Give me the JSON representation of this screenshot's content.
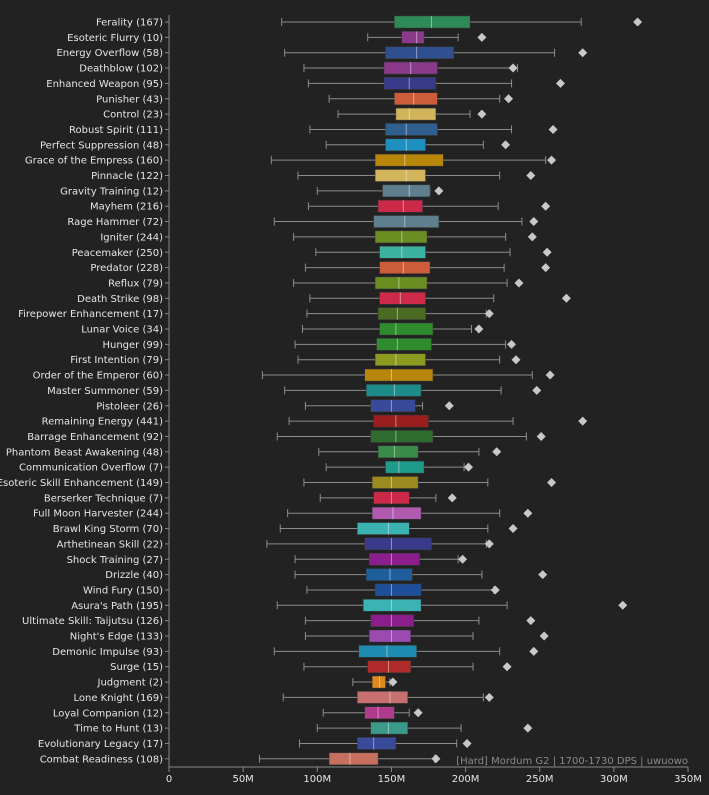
{
  "caption": "[Hard] Mordum G2 | 1700-1730 DPS | uwuowo",
  "colors": {
    "background": "#222222",
    "text": "#e6e6e6",
    "whisker": "#8c8c8c",
    "outlier": "#c8c8c8",
    "axis": "#888888"
  },
  "chart_data": {
    "type": "box",
    "orientation": "horizontal",
    "unit": "M",
    "xlim": [
      0,
      350
    ],
    "xticks": [
      "0",
      "50M",
      "100M",
      "150M",
      "200M",
      "250M",
      "300M",
      "350M"
    ],
    "grid": false,
    "categories": [
      {
        "label": "Ferality (167)",
        "min": 76,
        "q1": 152,
        "median": 177,
        "q3": 203,
        "max": 278,
        "outlier": 316,
        "color": "#2e8b57"
      },
      {
        "label": "Esoteric Flurry (10)",
        "min": 134,
        "q1": 157,
        "median": 167,
        "q3": 172,
        "max": 195,
        "outlier": 211,
        "color": "#8b3a8b"
      },
      {
        "label": "Energy Overflow (58)",
        "min": 78,
        "q1": 146,
        "median": 167,
        "q3": 192,
        "max": 260,
        "outlier": 279,
        "color": "#2f4f8f"
      },
      {
        "label": "Deathblow (102)",
        "min": 91,
        "q1": 145,
        "median": 163,
        "q3": 181,
        "max": 235,
        "outlier": 232,
        "color": "#8b3a8b"
      },
      {
        "label": "Enhanced Weapon (95)",
        "min": 94,
        "q1": 145,
        "median": 162,
        "q3": 180,
        "max": 231,
        "outlier": 264,
        "color": "#3a3a8b"
      },
      {
        "label": "Punisher (43)",
        "min": 108,
        "q1": 152,
        "median": 165,
        "q3": 181,
        "max": 223,
        "outlier": 229,
        "color": "#cd5c3a"
      },
      {
        "label": "Control (23)",
        "min": 114,
        "q1": 153,
        "median": 162,
        "q3": 180,
        "max": 203,
        "outlier": 211,
        "color": "#d2b45a"
      },
      {
        "label": "Robust Spirit (111)",
        "min": 95,
        "q1": 146,
        "median": 160,
        "q3": 181,
        "max": 231,
        "outlier": 259,
        "color": "#2f5f8f"
      },
      {
        "label": "Perfect Suppression (48)",
        "min": 106,
        "q1": 146,
        "median": 160,
        "q3": 173,
        "max": 212,
        "outlier": 227,
        "color": "#1e90c0"
      },
      {
        "label": "Grace of the Empress (160)",
        "min": 69,
        "q1": 139,
        "median": 159,
        "q3": 185,
        "max": 254,
        "outlier": 258,
        "color": "#b8860b"
      },
      {
        "label": "Pinnacle (122)",
        "min": 87,
        "q1": 139,
        "median": 160,
        "q3": 173,
        "max": 223,
        "outlier": 244,
        "color": "#d2b45a"
      },
      {
        "label": "Gravity Training (12)",
        "min": 100,
        "q1": 144,
        "median": 162,
        "q3": 176,
        "max": 176,
        "outlier": 182,
        "color": "#5f7f8f"
      },
      {
        "label": "Mayhem (216)",
        "min": 94,
        "q1": 141,
        "median": 158,
        "q3": 171,
        "max": 222,
        "outlier": 254,
        "color": "#cd2a4a"
      },
      {
        "label": "Rage Hammer (72)",
        "min": 71,
        "q1": 138,
        "median": 159,
        "q3": 182,
        "max": 238,
        "outlier": 246,
        "color": "#5f7f8f"
      },
      {
        "label": "Igniter (244)",
        "min": 84,
        "q1": 139,
        "median": 157,
        "q3": 174,
        "max": 227,
        "outlier": 245,
        "color": "#6b8e23"
      },
      {
        "label": "Peacemaker (250)",
        "min": 99,
        "q1": 142,
        "median": 157,
        "q3": 173,
        "max": 230,
        "outlier": 255,
        "color": "#3cb3a0"
      },
      {
        "label": "Predator (228)",
        "min": 92,
        "q1": 142,
        "median": 158,
        "q3": 176,
        "max": 226,
        "outlier": 254,
        "color": "#cd5c3a"
      },
      {
        "label": "Reflux (79)",
        "min": 84,
        "q1": 139,
        "median": 155,
        "q3": 174,
        "max": 228,
        "outlier": 236,
        "color": "#6b8e23"
      },
      {
        "label": "Death Strike (98)",
        "min": 95,
        "q1": 142,
        "median": 156,
        "q3": 173,
        "max": 219,
        "outlier": 268,
        "color": "#cd2a4a"
      },
      {
        "label": "Firepower Enhancement (17)",
        "min": 93,
        "q1": 141,
        "median": 154,
        "q3": 173,
        "max": 214,
        "outlier": 216,
        "color": "#4b6b23"
      },
      {
        "label": "Lunar Voice (34)",
        "min": 90,
        "q1": 142,
        "median": 153,
        "q3": 178,
        "max": 204,
        "outlier": 209,
        "color": "#2e8b2e"
      },
      {
        "label": "Hunger (99)",
        "min": 85,
        "q1": 140,
        "median": 154,
        "q3": 177,
        "max": 227,
        "outlier": 231,
        "color": "#2e8b2e"
      },
      {
        "label": "First Intention (79)",
        "min": 87,
        "q1": 139,
        "median": 153,
        "q3": 173,
        "max": 223,
        "outlier": 234,
        "color": "#8b9a1e"
      },
      {
        "label": "Order of the Emperor (60)",
        "min": 63,
        "q1": 132,
        "median": 150,
        "q3": 178,
        "max": 245,
        "outlier": 257,
        "color": "#b8860b"
      },
      {
        "label": "Master Summoner (59)",
        "min": 78,
        "q1": 133,
        "median": 152,
        "q3": 170,
        "max": 224,
        "outlier": 248,
        "color": "#1e8b8b"
      },
      {
        "label": "Pistoleer (26)",
        "min": 92,
        "q1": 136,
        "median": 150,
        "q3": 166,
        "max": 171,
        "outlier": 189,
        "color": "#3a4a9b"
      },
      {
        "label": "Remaining Energy (441)",
        "min": 81,
        "q1": 138,
        "median": 153,
        "q3": 175,
        "max": 232,
        "outlier": 279,
        "color": "#9b1e1e"
      },
      {
        "label": "Barrage Enhancement (92)",
        "min": 73,
        "q1": 136,
        "median": 153,
        "q3": 178,
        "max": 241,
        "outlier": 251,
        "color": "#2e6b2e"
      },
      {
        "label": "Phantom Beast Awakening (48)",
        "min": 101,
        "q1": 141,
        "median": 152,
        "q3": 168,
        "max": 209,
        "outlier": 221,
        "color": "#3a8b4a"
      },
      {
        "label": "Communication Overflow (7)",
        "min": 106,
        "q1": 146,
        "median": 155,
        "q3": 172,
        "max": 199,
        "outlier": 202,
        "color": "#1e9b8b"
      },
      {
        "label": "Esoteric Skill Enhancement (149)",
        "min": 91,
        "q1": 137,
        "median": 150,
        "q3": 168,
        "max": 215,
        "outlier": 258,
        "color": "#9b8b1e"
      },
      {
        "label": "Berserker Technique (7)",
        "min": 102,
        "q1": 138,
        "median": 150,
        "q3": 162,
        "max": 180,
        "outlier": 191,
        "color": "#cd2a4a"
      },
      {
        "label": "Full Moon Harvester (244)",
        "min": 80,
        "q1": 137,
        "median": 151,
        "q3": 170,
        "max": 223,
        "outlier": 242,
        "color": "#b05ab0"
      },
      {
        "label": "Brawl King Storm (70)",
        "min": 75,
        "q1": 127,
        "median": 148,
        "q3": 162,
        "max": 215,
        "outlier": 232,
        "color": "#3cb3b3"
      },
      {
        "label": "Arthetinean Skill (22)",
        "min": 66,
        "q1": 132,
        "median": 150,
        "q3": 177,
        "max": 214,
        "outlier": 216,
        "color": "#3a3a8b"
      },
      {
        "label": "Shock Training (27)",
        "min": 85,
        "q1": 135,
        "median": 150,
        "q3": 169,
        "max": 195,
        "outlier": 198,
        "color": "#8b1e8b"
      },
      {
        "label": "Drizzle (40)",
        "min": 85,
        "q1": 133,
        "median": 149,
        "q3": 164,
        "max": 211,
        "outlier": 252,
        "color": "#1e5f9b"
      },
      {
        "label": "Wind Fury (150)",
        "min": 93,
        "q1": 139,
        "median": 150,
        "q3": 170,
        "max": 219,
        "outlier": 220,
        "color": "#1e4f9b"
      },
      {
        "label": "Asura's Path (195)",
        "min": 73,
        "q1": 131,
        "median": 150,
        "q3": 170,
        "max": 228,
        "outlier": 306,
        "color": "#3cb3b3"
      },
      {
        "label": "Ultimate Skill: Taijutsu (126)",
        "min": 92,
        "q1": 136,
        "median": 150,
        "q3": 165,
        "max": 209,
        "outlier": 244,
        "color": "#8b1e8b"
      },
      {
        "label": "Night's Edge (133)",
        "min": 92,
        "q1": 135,
        "median": 150,
        "q3": 163,
        "max": 205,
        "outlier": 253,
        "color": "#9b4ab0"
      },
      {
        "label": "Demonic Impulse (93)",
        "min": 71,
        "q1": 128,
        "median": 147,
        "q3": 167,
        "max": 223,
        "outlier": 246,
        "color": "#1e8bb0"
      },
      {
        "label": "Surge (15)",
        "min": 91,
        "q1": 134,
        "median": 148,
        "q3": 163,
        "max": 205,
        "outlier": 228,
        "color": "#b02a2a"
      },
      {
        "label": "Judgment (2)",
        "min": 124,
        "q1": 137,
        "median": 142,
        "q3": 146,
        "max": 149,
        "outlier": 151,
        "color": "#e08a1e"
      },
      {
        "label": "Lone Knight (169)",
        "min": 77,
        "q1": 127,
        "median": 149,
        "q3": 161,
        "max": 212,
        "outlier": 216,
        "color": "#c87070"
      },
      {
        "label": "Loyal Companion (12)",
        "min": 104,
        "q1": 132,
        "median": 141,
        "q3": 152,
        "max": 162,
        "outlier": 168,
        "color": "#b03a8b"
      },
      {
        "label": "Time to Hunt (13)",
        "min": 100,
        "q1": 136,
        "median": 148,
        "q3": 161,
        "max": 197,
        "outlier": 242,
        "color": "#3a9b8b"
      },
      {
        "label": "Evolutionary Legacy (17)",
        "min": 88,
        "q1": 127,
        "median": 138,
        "q3": 153,
        "max": 194,
        "outlier": 201,
        "color": "#3a4a9b"
      },
      {
        "label": "Combat Readiness (108)",
        "min": 61,
        "q1": 108,
        "median": 122,
        "q3": 141,
        "max": 179,
        "outlier": 180,
        "color": "#c87060"
      }
    ]
  }
}
